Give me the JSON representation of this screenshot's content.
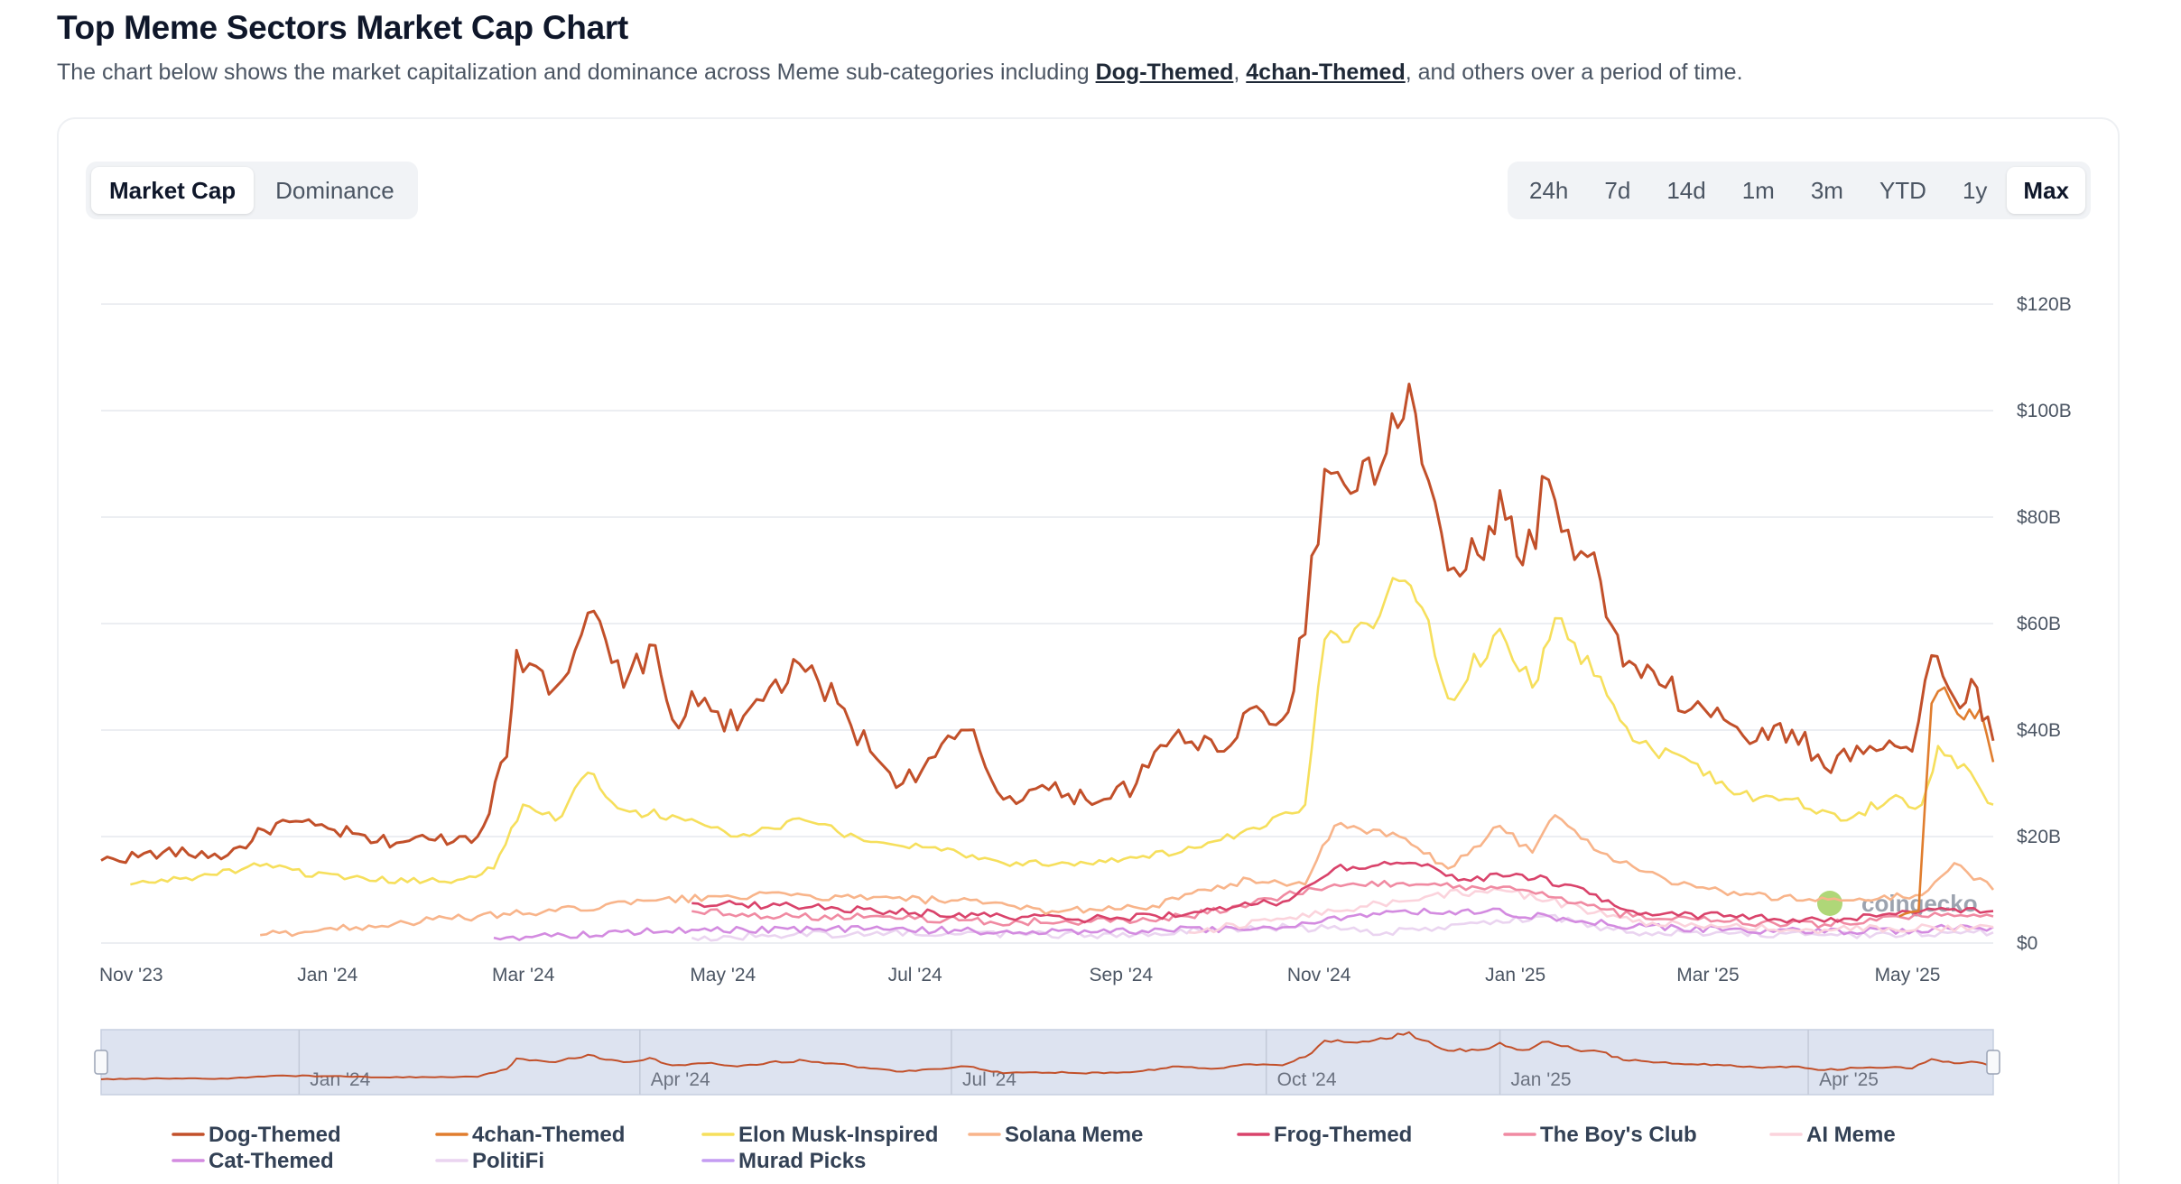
{
  "header": {
    "title": "Top Meme Sectors Market Cap Chart",
    "subtitle_prefix": "The chart below shows the market capitalization and dominance across Meme sub-categories including ",
    "link1": "Dog-Themed",
    "sep": ", ",
    "link2": "4chan-Themed",
    "subtitle_suffix": ", and others over a period of time."
  },
  "view_toggle": {
    "market_cap": "Market Cap",
    "dominance": "Dominance",
    "selected": "Market Cap"
  },
  "range_buttons": [
    "24h",
    "7d",
    "14d",
    "1m",
    "3m",
    "YTD",
    "1y",
    "Max"
  ],
  "range_selected": "Max",
  "watermark": "coingecko",
  "navigator_labels": [
    "Jan '24",
    "Apr '24",
    "Jul '24",
    "Oct '24",
    "Jan '25",
    "Apr '25"
  ],
  "chart_data": {
    "type": "line",
    "title": "",
    "xlabel": "",
    "ylabel": "",
    "ylim": [
      0,
      120
    ],
    "y_unit": "B USD",
    "y_ticks": [
      "$0",
      "$20B",
      "$40B",
      "$60B",
      "$80B",
      "$100B",
      "$120B"
    ],
    "y_tick_values": [
      0,
      20,
      40,
      60,
      80,
      100,
      120
    ],
    "x_ticks": [
      "Nov '23",
      "Jan '24",
      "Mar '24",
      "May '24",
      "Jul '24",
      "Sep '24",
      "Nov '24",
      "Jan '25",
      "Mar '25",
      "May '25"
    ],
    "x_tick_dates": [
      "2023-11-01",
      "2024-01-01",
      "2024-03-01",
      "2024-05-01",
      "2024-07-01",
      "2024-09-01",
      "2024-11-01",
      "2025-01-01",
      "2025-03-01",
      "2025-05-01"
    ],
    "x_range": [
      "2023-11-01",
      "2025-06-06"
    ],
    "grid": true,
    "legend_position": "bottom",
    "series": [
      {
        "name": "Dog-Themed",
        "color": "#c2502a",
        "points": [
          [
            "2023-11-01",
            15.5
          ],
          [
            "2023-11-20",
            17
          ],
          [
            "2023-12-10",
            16.5
          ],
          [
            "2023-12-25",
            22.5
          ],
          [
            "2024-01-10",
            21.5
          ],
          [
            "2024-01-25",
            19
          ],
          [
            "2024-02-10",
            19.5
          ],
          [
            "2024-02-25",
            20
          ],
          [
            "2024-03-05",
            35
          ],
          [
            "2024-03-08",
            55
          ],
          [
            "2024-03-14",
            52
          ],
          [
            "2024-03-20",
            48
          ],
          [
            "2024-03-30",
            62
          ],
          [
            "2024-04-10",
            48
          ],
          [
            "2024-04-18",
            56
          ],
          [
            "2024-04-25",
            42
          ],
          [
            "2024-05-05",
            46
          ],
          [
            "2024-05-15",
            40
          ],
          [
            "2024-05-25",
            48
          ],
          [
            "2024-06-05",
            51
          ],
          [
            "2024-06-15",
            45
          ],
          [
            "2024-06-25",
            36
          ],
          [
            "2024-07-05",
            30
          ],
          [
            "2024-07-15",
            35
          ],
          [
            "2024-07-25",
            40
          ],
          [
            "2024-08-05",
            27
          ],
          [
            "2024-08-15",
            29
          ],
          [
            "2024-08-25",
            28
          ],
          [
            "2024-09-05",
            27
          ],
          [
            "2024-09-15",
            30
          ],
          [
            "2024-09-28",
            40
          ],
          [
            "2024-10-10",
            36
          ],
          [
            "2024-10-20",
            44
          ],
          [
            "2024-10-30",
            42
          ],
          [
            "2024-11-06",
            58
          ],
          [
            "2024-11-12",
            89
          ],
          [
            "2024-11-22",
            85
          ],
          [
            "2024-12-01",
            92
          ],
          [
            "2024-12-08",
            105
          ],
          [
            "2024-12-12",
            90
          ],
          [
            "2024-12-20",
            70
          ],
          [
            "2024-12-31",
            72
          ],
          [
            "2025-01-05",
            85
          ],
          [
            "2025-01-12",
            71
          ],
          [
            "2025-01-20",
            87
          ],
          [
            "2025-01-28",
            72
          ],
          [
            "2025-02-05",
            68
          ],
          [
            "2025-02-12",
            52
          ],
          [
            "2025-02-25",
            48
          ],
          [
            "2025-03-05",
            44
          ],
          [
            "2025-03-15",
            42
          ],
          [
            "2025-03-25",
            38
          ],
          [
            "2025-04-05",
            40
          ],
          [
            "2025-04-15",
            33
          ],
          [
            "2025-04-25",
            37
          ],
          [
            "2025-05-05",
            38
          ],
          [
            "2025-05-12",
            36
          ],
          [
            "2025-05-18",
            54
          ],
          [
            "2025-05-25",
            46
          ],
          [
            "2025-06-01",
            48
          ],
          [
            "2025-06-06",
            38
          ]
        ]
      },
      {
        "name": "4chan-Themed",
        "color": "#e07d2e",
        "points": [
          [
            "2025-05-08",
            5
          ],
          [
            "2025-05-14",
            6
          ],
          [
            "2025-05-18",
            45
          ],
          [
            "2025-05-22",
            48
          ],
          [
            "2025-05-28",
            42
          ],
          [
            "2025-06-02",
            44
          ],
          [
            "2025-06-06",
            34
          ]
        ]
      },
      {
        "name": "Elon Musk-Inspired",
        "color": "#f6df5c",
        "points": [
          [
            "2023-11-10",
            11
          ],
          [
            "2023-12-01",
            12.5
          ],
          [
            "2023-12-20",
            14.5
          ],
          [
            "2024-01-15",
            12
          ],
          [
            "2024-02-15",
            11.5
          ],
          [
            "2024-03-01",
            14
          ],
          [
            "2024-03-10",
            26
          ],
          [
            "2024-03-20",
            23
          ],
          [
            "2024-03-30",
            32
          ],
          [
            "2024-04-10",
            25
          ],
          [
            "2024-04-25",
            24
          ],
          [
            "2024-05-15",
            20
          ],
          [
            "2024-06-05",
            23
          ],
          [
            "2024-06-25",
            19
          ],
          [
            "2024-07-15",
            18
          ],
          [
            "2024-08-05",
            15
          ],
          [
            "2024-08-25",
            15
          ],
          [
            "2024-09-15",
            16
          ],
          [
            "2024-10-05",
            18
          ],
          [
            "2024-10-25",
            22
          ],
          [
            "2024-11-06",
            26
          ],
          [
            "2024-11-12",
            57
          ],
          [
            "2024-11-25",
            60
          ],
          [
            "2024-12-05",
            68
          ],
          [
            "2024-12-12",
            63
          ],
          [
            "2024-12-20",
            46
          ],
          [
            "2025-01-05",
            59
          ],
          [
            "2025-01-15",
            48
          ],
          [
            "2025-01-22",
            61
          ],
          [
            "2025-02-05",
            50
          ],
          [
            "2025-02-15",
            38
          ],
          [
            "2025-03-05",
            34
          ],
          [
            "2025-03-20",
            28
          ],
          [
            "2025-04-05",
            27
          ],
          [
            "2025-04-20",
            23
          ],
          [
            "2025-05-05",
            27
          ],
          [
            "2025-05-15",
            26
          ],
          [
            "2025-05-20",
            37
          ],
          [
            "2025-06-01",
            30
          ],
          [
            "2025-06-06",
            26
          ]
        ]
      },
      {
        "name": "Solana Meme",
        "color": "#f8b48a",
        "points": [
          [
            "2023-12-20",
            1.5
          ],
          [
            "2024-02-25",
            5
          ],
          [
            "2024-03-20",
            6
          ],
          [
            "2024-04-20",
            8
          ],
          [
            "2024-05-20",
            9
          ],
          [
            "2024-06-20",
            8.5
          ],
          [
            "2024-07-20",
            8
          ],
          [
            "2024-08-20",
            6
          ],
          [
            "2024-09-20",
            7
          ],
          [
            "2024-10-20",
            12
          ],
          [
            "2024-11-06",
            11
          ],
          [
            "2024-11-15",
            22
          ],
          [
            "2024-12-05",
            20
          ],
          [
            "2024-12-20",
            14
          ],
          [
            "2025-01-05",
            22
          ],
          [
            "2025-01-15",
            17
          ],
          [
            "2025-01-22",
            24
          ],
          [
            "2025-02-05",
            17
          ],
          [
            "2025-02-25",
            12
          ],
          [
            "2025-03-20",
            9
          ],
          [
            "2025-04-20",
            8
          ],
          [
            "2025-05-15",
            9
          ],
          [
            "2025-05-25",
            15
          ],
          [
            "2025-06-06",
            10
          ]
        ]
      },
      {
        "name": "Frog-Themed",
        "color": "#d9436b",
        "points": [
          [
            "2024-05-01",
            7.5
          ],
          [
            "2024-06-01",
            7
          ],
          [
            "2024-07-01",
            6
          ],
          [
            "2024-08-01",
            5
          ],
          [
            "2024-09-01",
            4.5
          ],
          [
            "2024-10-01",
            5.5
          ],
          [
            "2024-11-01",
            8
          ],
          [
            "2024-11-15",
            14
          ],
          [
            "2024-12-10",
            15
          ],
          [
            "2024-12-25",
            12
          ],
          [
            "2025-01-10",
            13
          ],
          [
            "2025-01-25",
            11
          ],
          [
            "2025-02-15",
            6
          ],
          [
            "2025-03-15",
            5
          ],
          [
            "2025-04-15",
            4
          ],
          [
            "2025-05-15",
            6
          ],
          [
            "2025-06-06",
            6
          ]
        ]
      },
      {
        "name": "The Boy's Club",
        "color": "#f08aa2",
        "points": [
          [
            "2024-05-01",
            6
          ],
          [
            "2024-06-01",
            5
          ],
          [
            "2024-07-01",
            5
          ],
          [
            "2024-08-01",
            4
          ],
          [
            "2024-09-01",
            4
          ],
          [
            "2024-10-01",
            5
          ],
          [
            "2024-11-15",
            11
          ],
          [
            "2024-12-10",
            11
          ],
          [
            "2025-01-10",
            10
          ],
          [
            "2025-02-15",
            5
          ],
          [
            "2025-03-15",
            4
          ],
          [
            "2025-04-15",
            3.5
          ],
          [
            "2025-05-15",
            5
          ],
          [
            "2025-06-06",
            5
          ]
        ]
      },
      {
        "name": "AI Meme",
        "color": "#fbd3dc",
        "points": [
          [
            "2024-10-01",
            2
          ],
          [
            "2024-11-15",
            6
          ],
          [
            "2024-12-15",
            9
          ],
          [
            "2025-01-05",
            10
          ],
          [
            "2025-01-20",
            8
          ],
          [
            "2025-02-15",
            4
          ],
          [
            "2025-03-15",
            3
          ],
          [
            "2025-04-15",
            2.5
          ],
          [
            "2025-06-06",
            3
          ]
        ]
      },
      {
        "name": "Cat-Themed",
        "color": "#d38be0",
        "points": [
          [
            "2024-03-01",
            1
          ],
          [
            "2024-05-01",
            2.5
          ],
          [
            "2024-07-01",
            2.5
          ],
          [
            "2024-09-01",
            2
          ],
          [
            "2024-11-01",
            3
          ],
          [
            "2024-12-01",
            6
          ],
          [
            "2025-01-01",
            6
          ],
          [
            "2025-02-15",
            3
          ],
          [
            "2025-04-15",
            2
          ],
          [
            "2025-06-06",
            3
          ]
        ]
      },
      {
        "name": "PolitiFi",
        "color": "#ead4f0",
        "points": [
          [
            "2024-05-01",
            1
          ],
          [
            "2024-07-01",
            2
          ],
          [
            "2024-09-01",
            1.5
          ],
          [
            "2024-11-01",
            3
          ],
          [
            "2024-12-01",
            2
          ],
          [
            "2025-01-18",
            5
          ],
          [
            "2025-02-15",
            2
          ],
          [
            "2025-04-15",
            1.5
          ],
          [
            "2025-06-06",
            2
          ]
        ]
      },
      {
        "name": "Murad Picks",
        "color": "#c49cf2",
        "points": [
          [
            "2024-05-15",
            0.5
          ],
          [
            "2024-07-10",
            1
          ],
          [
            "2024-07-11",
            5
          ],
          [
            "2024-09-01",
            2
          ],
          [
            "2024-11-01",
            4
          ],
          [
            "2024-12-15",
            5
          ],
          [
            "2025-01-05",
            6
          ],
          [
            "2025-02-15",
            3
          ],
          [
            "2025-04-15",
            2
          ],
          [
            "2025-06-06",
            2.5
          ]
        ]
      }
    ]
  }
}
